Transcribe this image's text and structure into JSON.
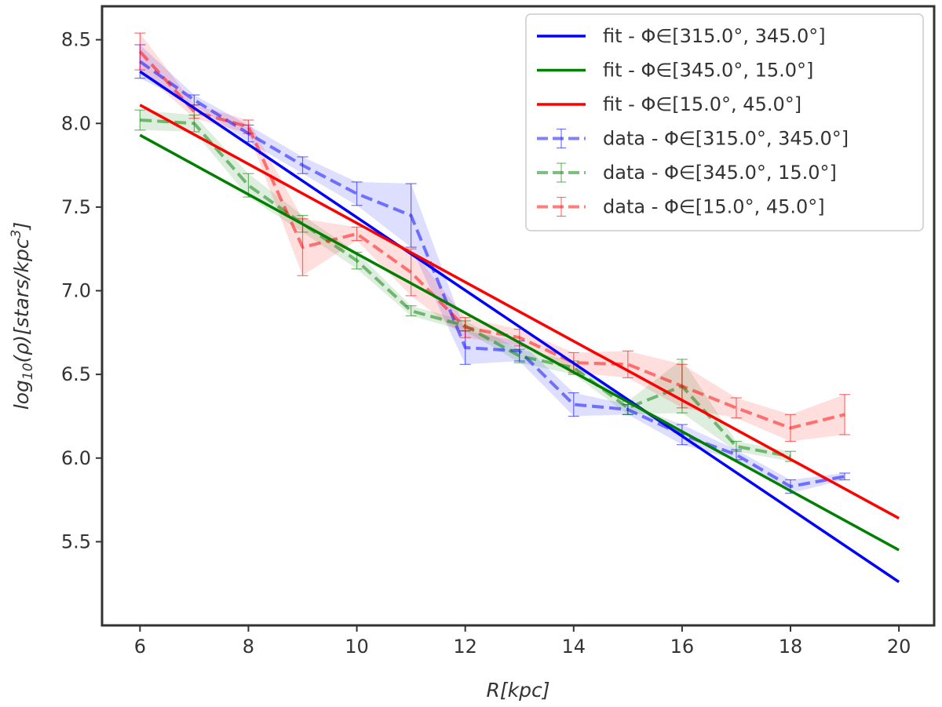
{
  "chart_data": {
    "type": "line",
    "xlabel": "R[kpc]",
    "ylabel_parts": [
      "log",
      "10",
      "(ρ)[stars/kpc",
      "3",
      "]"
    ],
    "xlim": [
      5.3,
      20.65
    ],
    "ylim": [
      5.0,
      8.7
    ],
    "xticks": [
      6,
      8,
      10,
      12,
      14,
      16,
      18,
      20
    ],
    "yticks": [
      5.5,
      6.0,
      6.5,
      7.0,
      7.5,
      8.0,
      8.5
    ],
    "grid": false,
    "legend_position": "top-right",
    "fits": [
      {
        "name": "fit - Φ∈[315.0°, 345.0°]",
        "color": "#0000ff",
        "x": [
          6,
          20
        ],
        "y": [
          8.31,
          5.26
        ]
      },
      {
        "name": "fit - Φ∈[345.0°, 15.0°]",
        "color": "#007f00",
        "x": [
          6,
          20
        ],
        "y": [
          7.93,
          5.45
        ]
      },
      {
        "name": "fit - Φ∈[15.0°, 45.0°]",
        "color": "#ff0000",
        "x": [
          6,
          20
        ],
        "y": [
          8.11,
          5.64
        ]
      }
    ],
    "data_series": [
      {
        "name": "data - Φ∈[315.0°, 345.0°]",
        "color": "#0000ff",
        "x": [
          6,
          7,
          8,
          9,
          10,
          11,
          12,
          13,
          14,
          15,
          16,
          17,
          18,
          19
        ],
        "y": [
          8.37,
          8.14,
          7.94,
          7.75,
          7.58,
          7.45,
          6.66,
          6.64,
          6.32,
          6.29,
          6.14,
          6.02,
          5.83,
          5.89
        ],
        "err": [
          0.1,
          0.03,
          0.05,
          0.05,
          0.07,
          0.19,
          0.1,
          0.06,
          0.07,
          0.03,
          0.06,
          0.03,
          0.04,
          0.02
        ]
      },
      {
        "name": "data - Φ∈[345.0°, 15.0°]",
        "color": "#007f00",
        "x": [
          6,
          7,
          8,
          9,
          10,
          11,
          12,
          13,
          14,
          15,
          16,
          17,
          18
        ],
        "y": [
          8.02,
          8.0,
          7.63,
          7.4,
          7.18,
          6.88,
          6.79,
          6.61,
          6.54,
          6.3,
          6.43,
          6.07,
          6.01
        ],
        "err": [
          0.06,
          0.05,
          0.07,
          0.05,
          0.05,
          0.03,
          0.03,
          0.04,
          0.04,
          0.04,
          0.16,
          0.03,
          0.03
        ]
      },
      {
        "name": "data - Φ∈[15.0°, 45.0°]",
        "color": "#ff0000",
        "x": [
          6,
          7,
          8,
          9,
          10,
          11,
          12,
          13,
          14,
          15,
          16,
          17,
          18,
          19
        ],
        "y": [
          8.43,
          8.07,
          7.98,
          7.26,
          7.34,
          7.11,
          6.78,
          6.72,
          6.57,
          6.56,
          6.43,
          6.3,
          6.18,
          6.26
        ],
        "err": [
          0.11,
          0.04,
          0.04,
          0.17,
          0.04,
          0.14,
          0.06,
          0.05,
          0.06,
          0.08,
          0.13,
          0.06,
          0.08,
          0.12
        ]
      }
    ]
  }
}
